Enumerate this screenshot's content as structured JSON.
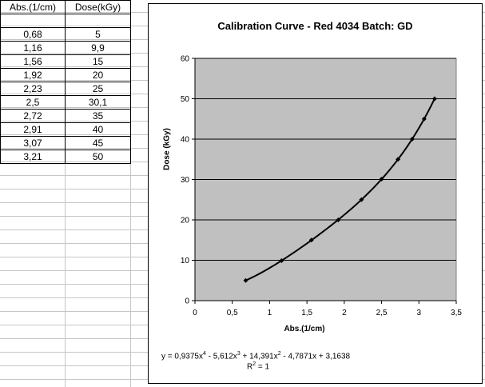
{
  "table": {
    "headers": [
      "Abs.(1/cm)",
      "Dose(kGy)"
    ],
    "rows": [
      [
        "0,68",
        "5"
      ],
      [
        "1,16",
        "9,9"
      ],
      [
        "1,56",
        "15"
      ],
      [
        "1,92",
        "20"
      ],
      [
        "2,23",
        "25"
      ],
      [
        "2,5",
        "30,1"
      ],
      [
        "2,72",
        "35"
      ],
      [
        "2,91",
        "40"
      ],
      [
        "3,07",
        "45"
      ],
      [
        "3,21",
        "50"
      ]
    ]
  },
  "chart_data": {
    "type": "scatter",
    "title": "Calibration Curve - Red 4034 Batch: GD",
    "xlabel": "Abs.(1/cm)",
    "ylabel": "Dose (kGy)",
    "xlim": [
      0,
      3.5
    ],
    "ylim": [
      0,
      60
    ],
    "x_ticks": [
      "0",
      "0,5",
      "1",
      "1,5",
      "2",
      "2,5",
      "3",
      "3,5"
    ],
    "y_ticks": [
      "0",
      "10",
      "20",
      "30",
      "40",
      "50",
      "60"
    ],
    "grid": "horizontal",
    "plot_background": "#c0c0c0",
    "marker_color": "#000000",
    "series": [
      {
        "x": [
          0.68,
          1.16,
          1.56,
          1.92,
          2.23,
          2.5,
          2.72,
          2.91,
          3.07,
          3.21
        ],
        "y": [
          5,
          9.9,
          15,
          20,
          25,
          30.1,
          35,
          40,
          45,
          50
        ]
      }
    ],
    "trendline": {
      "type": "polynomial",
      "coefficients": [
        0.9375,
        -5.612,
        14.391,
        -4.7871,
        3.1638
      ],
      "equation": {
        "prefix": "y = 0,9375x",
        "p1": "4",
        "mid1": " - 5,612x",
        "p2": "3",
        "mid2": " + 14,391x",
        "p3": "2",
        "suffix": " - 4,7871x + 3,1638"
      },
      "r_squared": {
        "prefix": "R",
        "power": "2",
        "suffix": " = 1"
      }
    }
  }
}
